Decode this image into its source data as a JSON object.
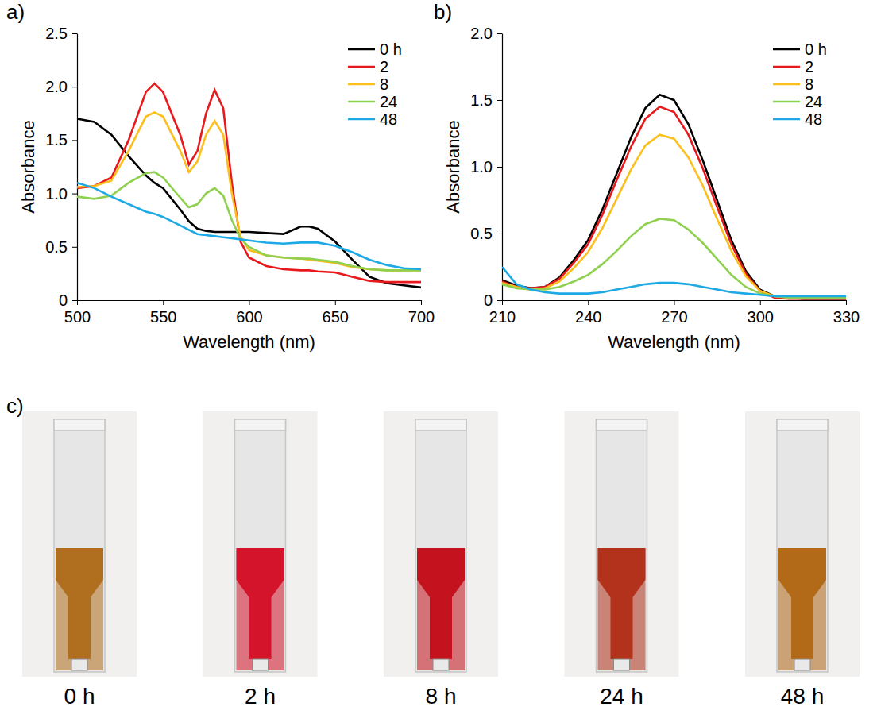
{
  "chart_data": [
    {
      "type": "line",
      "panel_label": "a)",
      "x_label": "Wavelength (nm)",
      "y_label": "Absorbance",
      "x": [
        500,
        510,
        520,
        530,
        540,
        545,
        550,
        560,
        565,
        570,
        575,
        580,
        585,
        590,
        595,
        600,
        610,
        620,
        630,
        635,
        640,
        650,
        660,
        670,
        680,
        690,
        700
      ],
      "series": [
        {
          "name": "0 h",
          "color": "#000000",
          "values": [
            1.7,
            1.67,
            1.55,
            1.35,
            1.17,
            1.1,
            1.05,
            0.85,
            0.74,
            0.67,
            0.65,
            0.64,
            0.64,
            0.64,
            0.64,
            0.64,
            0.63,
            0.62,
            0.69,
            0.69,
            0.67,
            0.55,
            0.38,
            0.22,
            0.16,
            0.14,
            0.12
          ]
        },
        {
          "name": "2",
          "color": "#e8191c",
          "values": [
            1.05,
            1.07,
            1.15,
            1.5,
            1.95,
            2.03,
            1.95,
            1.55,
            1.27,
            1.4,
            1.75,
            1.97,
            1.8,
            1.1,
            0.55,
            0.4,
            0.32,
            0.29,
            0.28,
            0.28,
            0.27,
            0.26,
            0.22,
            0.18,
            0.17,
            0.17,
            0.17
          ]
        },
        {
          "name": "8",
          "color": "#fbbf1e",
          "values": [
            1.06,
            1.07,
            1.12,
            1.4,
            1.72,
            1.76,
            1.72,
            1.4,
            1.2,
            1.3,
            1.55,
            1.68,
            1.55,
            1.0,
            0.6,
            0.47,
            0.42,
            0.4,
            0.39,
            0.38,
            0.37,
            0.35,
            0.31,
            0.29,
            0.28,
            0.28,
            0.28
          ]
        },
        {
          "name": "24",
          "color": "#8fd14f",
          "values": [
            0.97,
            0.95,
            0.98,
            1.1,
            1.19,
            1.2,
            1.15,
            0.96,
            0.87,
            0.9,
            1.0,
            1.05,
            0.98,
            0.75,
            0.58,
            0.5,
            0.42,
            0.4,
            0.39,
            0.39,
            0.38,
            0.36,
            0.32,
            0.29,
            0.28,
            0.28,
            0.28
          ]
        },
        {
          "name": "48",
          "color": "#1ca9e6",
          "values": [
            1.1,
            1.05,
            0.97,
            0.9,
            0.83,
            0.81,
            0.78,
            0.7,
            0.66,
            0.62,
            0.61,
            0.6,
            0.59,
            0.58,
            0.57,
            0.56,
            0.54,
            0.53,
            0.54,
            0.54,
            0.54,
            0.51,
            0.45,
            0.38,
            0.33,
            0.3,
            0.29
          ]
        }
      ],
      "xlim": [
        500,
        700
      ],
      "ylim": [
        0,
        2.5
      ],
      "xticks": [
        500,
        550,
        600,
        650,
        700
      ],
      "yticks": [
        0,
        0.5,
        {
          "value": 1,
          "label": "1.0"
        },
        1.5,
        {
          "value": 2,
          "label": "2.0"
        },
        2.5
      ],
      "legend": "top-right",
      "grid": false
    },
    {
      "type": "line",
      "panel_label": "b)",
      "x_label": "Wavelength (nm)",
      "y_label": "Absorbance",
      "x": [
        210,
        215,
        220,
        225,
        230,
        235,
        240,
        245,
        250,
        255,
        260,
        265,
        270,
        275,
        280,
        285,
        290,
        295,
        300,
        305,
        310,
        315,
        320,
        325,
        330
      ],
      "series": [
        {
          "name": "0 h",
          "color": "#000000",
          "values": [
            0.15,
            0.11,
            0.09,
            0.1,
            0.17,
            0.3,
            0.45,
            0.68,
            0.95,
            1.22,
            1.44,
            1.54,
            1.5,
            1.32,
            1.05,
            0.75,
            0.45,
            0.22,
            0.08,
            0.03,
            0.02,
            0.01,
            0.01,
            0.01,
            0.01
          ]
        },
        {
          "name": "2",
          "color": "#e8191c",
          "values": [
            0.14,
            0.1,
            0.09,
            0.1,
            0.16,
            0.28,
            0.42,
            0.64,
            0.9,
            1.15,
            1.36,
            1.45,
            1.41,
            1.24,
            0.99,
            0.7,
            0.42,
            0.2,
            0.07,
            0.02,
            0.01,
            0.01,
            0.01,
            0.01,
            0.01
          ]
        },
        {
          "name": "8",
          "color": "#fbbf1e",
          "values": [
            0.13,
            0.1,
            0.08,
            0.09,
            0.14,
            0.24,
            0.36,
            0.54,
            0.76,
            0.98,
            1.16,
            1.24,
            1.21,
            1.07,
            0.86,
            0.61,
            0.37,
            0.18,
            0.07,
            0.03,
            0.02,
            0.02,
            0.02,
            0.02,
            0.02
          ]
        },
        {
          "name": "24",
          "color": "#8fd14f",
          "values": [
            0.12,
            0.09,
            0.08,
            0.08,
            0.1,
            0.14,
            0.19,
            0.27,
            0.37,
            0.48,
            0.57,
            0.61,
            0.6,
            0.53,
            0.43,
            0.31,
            0.19,
            0.1,
            0.05,
            0.03,
            0.02,
            0.02,
            0.02,
            0.02,
            0.02
          ]
        },
        {
          "name": "48",
          "color": "#1ca9e6",
          "values": [
            0.25,
            0.12,
            0.08,
            0.06,
            0.05,
            0.05,
            0.05,
            0.06,
            0.08,
            0.1,
            0.12,
            0.13,
            0.13,
            0.12,
            0.1,
            0.08,
            0.06,
            0.05,
            0.04,
            0.03,
            0.03,
            0.03,
            0.03,
            0.03,
            0.03
          ]
        }
      ],
      "xlim": [
        210,
        330
      ],
      "ylim": [
        0,
        2.0
      ],
      "xticks": [
        210,
        240,
        270,
        300,
        330
      ],
      "yticks": [
        0,
        0.5,
        {
          "value": 1,
          "label": "1.0"
        },
        1.5,
        {
          "value": 2,
          "label": "2.0"
        }
      ],
      "legend": "top-right",
      "grid": false
    }
  ],
  "photos": {
    "panel_label": "c)",
    "items": [
      {
        "label": "0 h",
        "color": "#b06f1e"
      },
      {
        "label": "2 h",
        "color": "#d3142a"
      },
      {
        "label": "8 h",
        "color": "#c4121e"
      },
      {
        "label": "24 h",
        "color": "#b2321c"
      },
      {
        "label": "48 h",
        "color": "#b26a18"
      }
    ]
  }
}
